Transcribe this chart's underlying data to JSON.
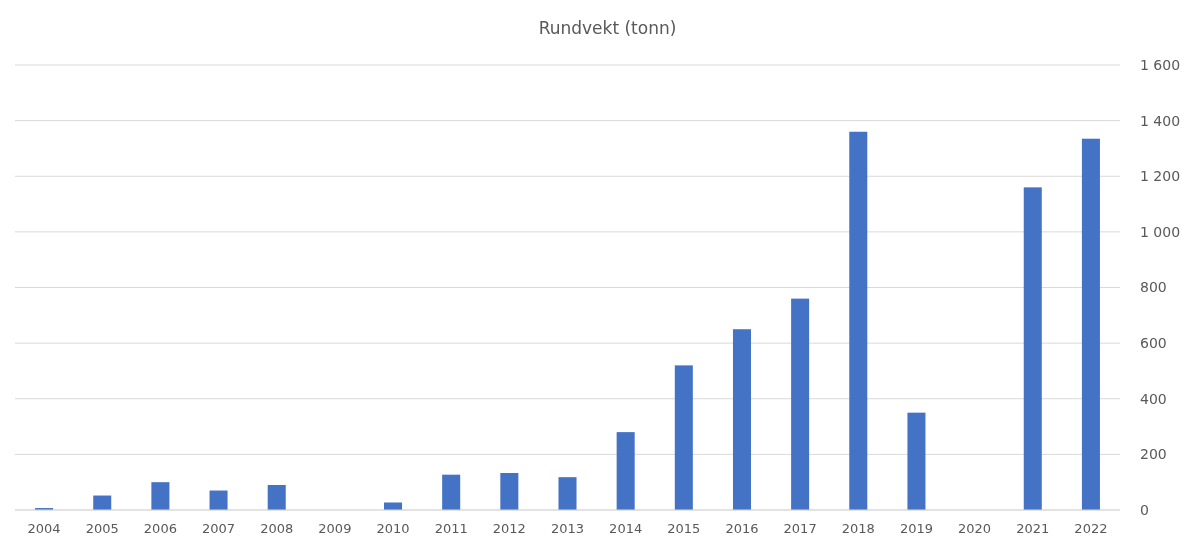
{
  "chart_data": {
    "type": "bar",
    "title": "Rundvekt (tonn)",
    "categories": [
      "2004",
      "2005",
      "2006",
      "2007",
      "2008",
      "2009",
      "2010",
      "2011",
      "2012",
      "2013",
      "2014",
      "2015",
      "2016",
      "2017",
      "2018",
      "2019",
      "2020",
      "2021",
      "2022"
    ],
    "values": [
      7,
      52,
      100,
      70,
      90,
      0,
      27,
      127,
      133,
      118,
      280,
      520,
      650,
      760,
      1360,
      350,
      0,
      1160,
      1335
    ],
    "color": "#4472c4",
    "ylim": [
      0,
      1600
    ],
    "yticks": [
      {
        "value": 0,
        "label": "0"
      },
      {
        "value": 200,
        "label": "200"
      },
      {
        "value": 400,
        "label": "400"
      },
      {
        "value": 600,
        "label": "600"
      },
      {
        "value": 800,
        "label": "800"
      },
      {
        "value": 1000,
        "label": "1 000"
      },
      {
        "value": 1200,
        "label": "1 200"
      },
      {
        "value": 1400,
        "label": "1 400"
      },
      {
        "value": 1600,
        "label": "1 600"
      }
    ],
    "grid": "y"
  }
}
